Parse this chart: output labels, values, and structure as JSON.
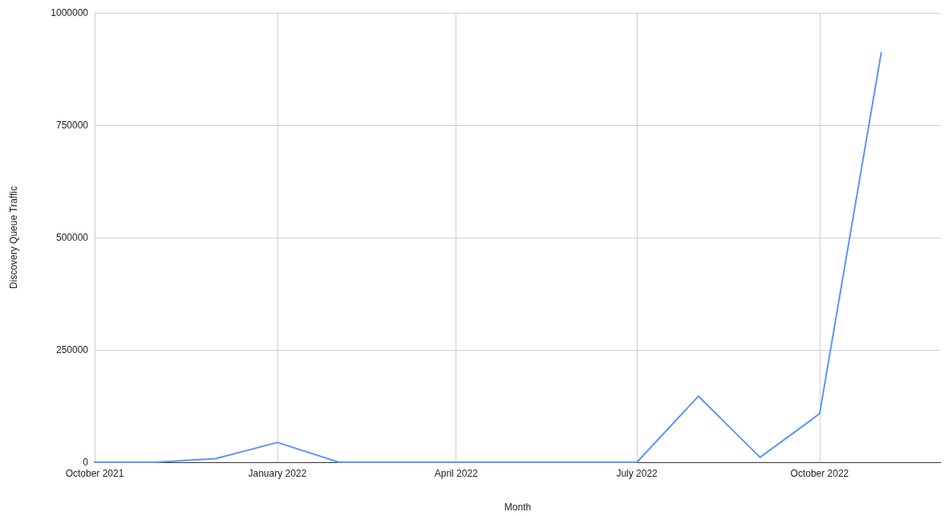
{
  "chart_data": {
    "type": "line",
    "xlabel": "Month",
    "ylabel": "Discovery Queue Traffic",
    "x": [
      "2021-10",
      "2021-11",
      "2021-12",
      "2022-01",
      "2022-02",
      "2022-03",
      "2022-04",
      "2022-05",
      "2022-06",
      "2022-07",
      "2022-08",
      "2022-09",
      "2022-10",
      "2022-11"
    ],
    "series": [
      {
        "color": "#5b95f9",
        "values": [
          0,
          0,
          8000,
          44000,
          0,
          0,
          0,
          0,
          0,
          0,
          147000,
          11000,
          108000,
          911000
        ]
      }
    ],
    "xlim": [
      "2021-10",
      "2022-12"
    ],
    "xticks": [
      {
        "value": "2021-10",
        "label": "October 2021"
      },
      {
        "value": "2022-01",
        "label": "January 2022"
      },
      {
        "value": "2022-04",
        "label": "April 2022"
      },
      {
        "value": "2022-07",
        "label": "July 2022"
      },
      {
        "value": "2022-10",
        "label": "October 2022"
      }
    ],
    "ylim": [
      0,
      1000000
    ],
    "yticks": [
      0,
      250000,
      500000,
      750000,
      1000000
    ],
    "grid": true,
    "marker": "none",
    "line_style": "solid"
  }
}
